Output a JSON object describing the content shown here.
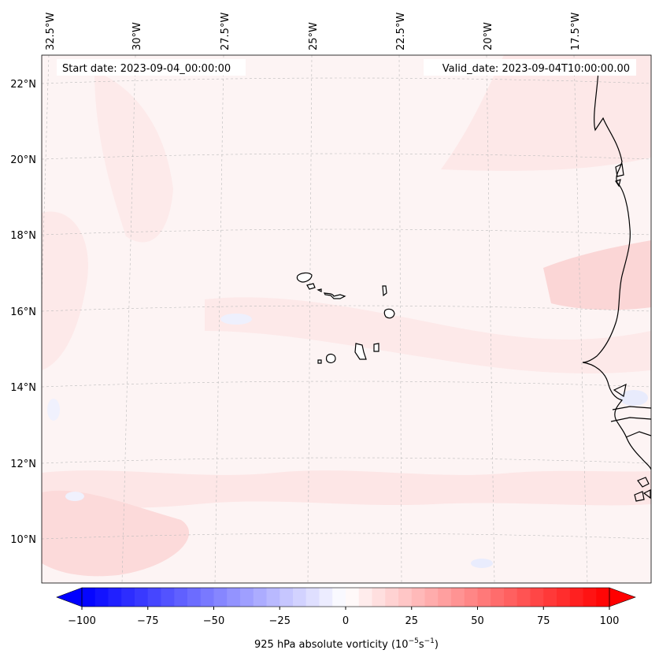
{
  "header": {
    "start_date": "Start date: 2023-09-04_00:00:00",
    "valid_date": "Valid_date: 2023-09-04T10:00:00.00"
  },
  "axes": {
    "lon_labels": [
      "32.5°W",
      "30°W",
      "27.5°W",
      "25°W",
      "22.5°W",
      "20°W",
      "17.5°W"
    ],
    "lat_labels": [
      "22°N",
      "20°N",
      "18°N",
      "16°N",
      "14°N",
      "12°N",
      "10°N"
    ]
  },
  "colorbar": {
    "min": -100,
    "max": 100,
    "ticks": [
      "−100",
      "−75",
      "−50",
      "−25",
      "0",
      "25",
      "50",
      "75",
      "100"
    ],
    "label": "925 hPa absolute vorticity (10",
    "label_exp1": "−5",
    "label_mid": "s",
    "label_exp2": "−1",
    "label_end": ")",
    "neg_color": "#0000ff",
    "pos_color": "#ff0000"
  },
  "features": [
    "coastline",
    "cape-verde-islands",
    "west-africa-coast"
  ]
}
